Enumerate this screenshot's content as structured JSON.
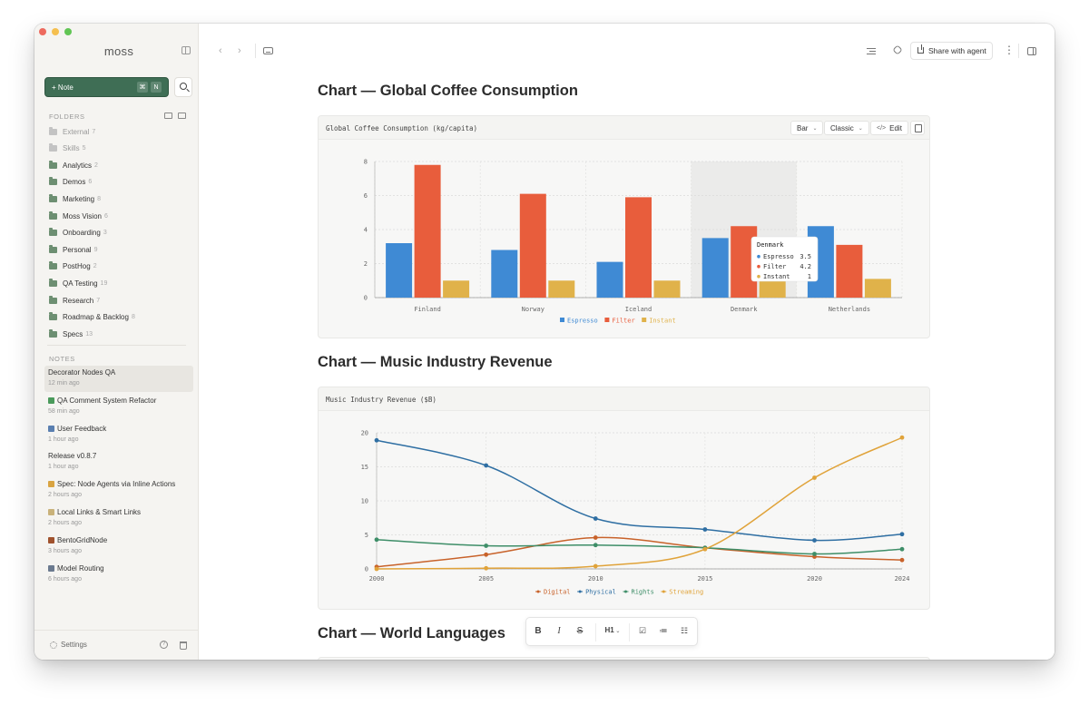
{
  "app": {
    "brand": "moss"
  },
  "sidebar": {
    "new_note_label": "+ Note",
    "shortcut_keys": [
      "⌘",
      "N"
    ],
    "folders_label": "FOLDERS",
    "folders": [
      {
        "name": "External",
        "count": "7",
        "dim": true
      },
      {
        "name": "Skills",
        "count": "5",
        "dim": true
      },
      {
        "name": "Analytics",
        "count": "2"
      },
      {
        "name": "Demos",
        "count": "6"
      },
      {
        "name": "Marketing",
        "count": "8"
      },
      {
        "name": "Moss Vision",
        "count": "6"
      },
      {
        "name": "Onboarding",
        "count": "3"
      },
      {
        "name": "Personal",
        "count": "9"
      },
      {
        "name": "PostHog",
        "count": "2"
      },
      {
        "name": "QA Testing",
        "count": "19"
      },
      {
        "name": "Research",
        "count": "7"
      },
      {
        "name": "Roadmap & Backlog",
        "count": "8"
      },
      {
        "name": "Specs",
        "count": "13"
      }
    ],
    "notes_label": "NOTES",
    "notes": [
      {
        "title": "Decorator Nodes QA",
        "time": "12 min ago",
        "icon": "",
        "icon_color": ""
      },
      {
        "title": "QA Comment System Refactor",
        "time": "58 min ago",
        "icon": "pencil-icon",
        "icon_color": "#4a9a5b"
      },
      {
        "title": "User Feedback",
        "time": "1 hour ago",
        "icon": "inbox-icon",
        "icon_color": "#5a7fb0"
      },
      {
        "title": "Release v0.8.7",
        "time": "1 hour ago",
        "icon": "",
        "icon_color": ""
      },
      {
        "title": "Spec: Node Agents via Inline Actions",
        "time": "2 hours ago",
        "icon": "ruler-icon",
        "icon_color": "#d9a441"
      },
      {
        "title": "Local Links & Smart Links",
        "time": "2 hours ago",
        "icon": "memo-icon",
        "icon_color": "#c9b27a"
      },
      {
        "title": "BentoGridNode",
        "time": "3 hours ago",
        "icon": "bento-icon",
        "icon_color": "#a0522d"
      },
      {
        "title": "Model Routing",
        "time": "6 hours ago",
        "icon": "switch-icon",
        "icon_color": "#6b7a8f"
      }
    ],
    "settings_label": "Settings"
  },
  "toolbar": {
    "share_label": "Share with agent"
  },
  "document": {
    "headings": [
      "Chart — Global Coffee Consumption",
      "Chart — Music Industry Revenue",
      "Chart — World Languages"
    ]
  },
  "coffee": {
    "card_title": "Global Coffee Consumption (kg/capita)",
    "type_label": "Bar",
    "theme_label": "Classic",
    "edit_label": "Edit",
    "tooltip": {
      "title": "Denmark",
      "rows": [
        {
          "label": "Espresso",
          "value": "3.5"
        },
        {
          "label": "Filter",
          "value": "4.2"
        },
        {
          "label": "Instant",
          "value": "1"
        }
      ]
    }
  },
  "music": {
    "card_title": "Music Industry Revenue ($B)"
  },
  "format_toolbar": {
    "heading_label": "H1"
  },
  "chart_data": [
    {
      "type": "bar",
      "title": "Global Coffee Consumption (kg/capita)",
      "categories": [
        "Finland",
        "Norway",
        "Iceland",
        "Denmark",
        "Netherlands"
      ],
      "series": [
        {
          "name": "Espresso",
          "color": "#3f8ad4",
          "values": [
            3.2,
            2.8,
            2.1,
            3.5,
            4.2
          ]
        },
        {
          "name": "Filter",
          "color": "#e85d3c",
          "values": [
            7.8,
            6.1,
            5.9,
            4.2,
            3.1
          ]
        },
        {
          "name": "Instant",
          "color": "#e0b24a",
          "values": [
            1,
            1,
            1,
            1,
            1.1
          ]
        }
      ],
      "ylim": [
        0,
        8
      ],
      "yticks": [
        "0",
        "2",
        "4",
        "6",
        "8"
      ],
      "highlighted_category": "Denmark",
      "grid": true,
      "legend": "bottom"
    },
    {
      "type": "line",
      "title": "Music Industry Revenue ($B)",
      "x": [
        2000,
        2005,
        2010,
        2015,
        2020,
        2024
      ],
      "xticks": [
        "2000",
        "2005",
        "2010",
        "2015",
        "2020",
        "2024"
      ],
      "series": [
        {
          "name": "Digital",
          "color": "#c8622a",
          "values": [
            0.3,
            2.1,
            4.6,
            3.1,
            1.8,
            1.3
          ]
        },
        {
          "name": "Physical",
          "color": "#2f6fa3",
          "values": [
            18.9,
            15.2,
            7.4,
            5.8,
            4.2,
            5.1
          ]
        },
        {
          "name": "Rights",
          "color": "#3e8e68",
          "values": [
            4.3,
            3.4,
            3.5,
            3.1,
            2.2,
            2.9
          ]
        },
        {
          "name": "Streaming",
          "color": "#e0a33a",
          "values": [
            0,
            0.1,
            0.4,
            2.9,
            13.4,
            19.3
          ]
        }
      ],
      "ylim": [
        0,
        20
      ],
      "yticks": [
        "0",
        "5",
        "10",
        "15",
        "20"
      ],
      "grid": true,
      "legend": "bottom"
    }
  ]
}
